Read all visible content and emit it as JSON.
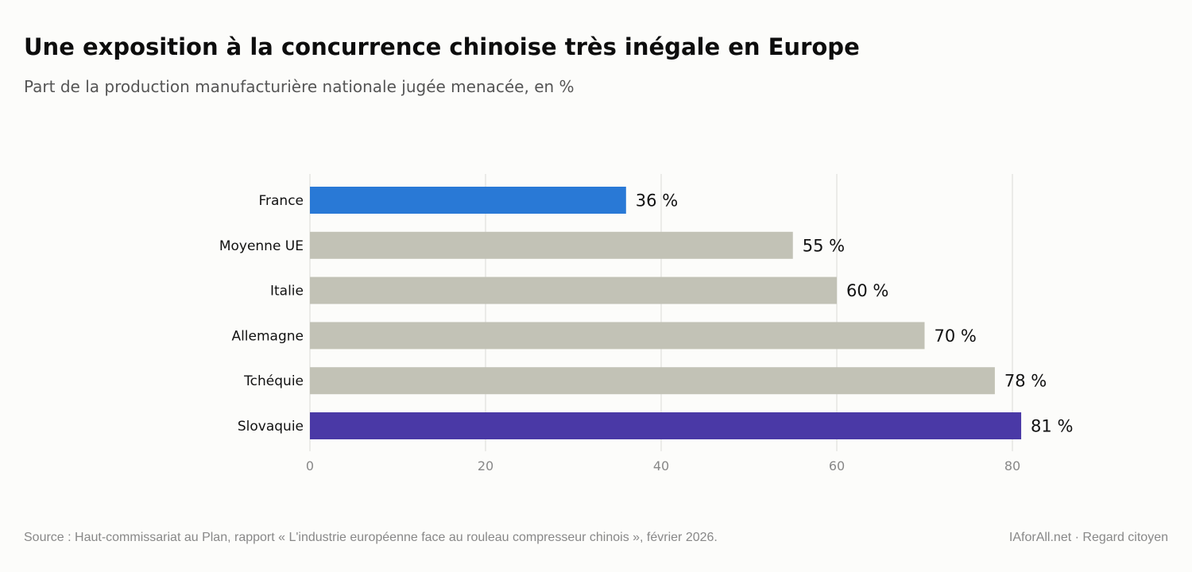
{
  "title": "Une exposition à la concurrence chinoise très inégale en Europe",
  "subtitle": "Part de la production manufacturière nationale jugée menacée, en %",
  "footer": {
    "source": "Source : Haut-commissariat au Plan, rapport « L'industrie européenne face au rouleau compresseur chinois », février 2026.",
    "credit": "IAforAll.net · Regard citoyen"
  },
  "chart_data": {
    "type": "bar",
    "orientation": "horizontal",
    "categories": [
      "France",
      "Moyenne UE",
      "Italie",
      "Allemagne",
      "Tchéquie",
      "Slovaquie"
    ],
    "values": [
      36,
      55,
      60,
      70,
      78,
      81
    ],
    "value_suffix": " %",
    "colors": [
      "#2979d6",
      "#c2c2b6",
      "#c2c2b6",
      "#c2c2b6",
      "#c2c2b6",
      "#4a39a6"
    ],
    "xticks": [
      0,
      20,
      40,
      60,
      80
    ],
    "xlim": [
      0,
      100
    ],
    "grid": true,
    "title": "Une exposition à la concurrence chinoise très inégale en Europe",
    "subtitle": "Part de la production manufacturière nationale jugée menacée, en %",
    "xlabel": "",
    "ylabel": ""
  }
}
